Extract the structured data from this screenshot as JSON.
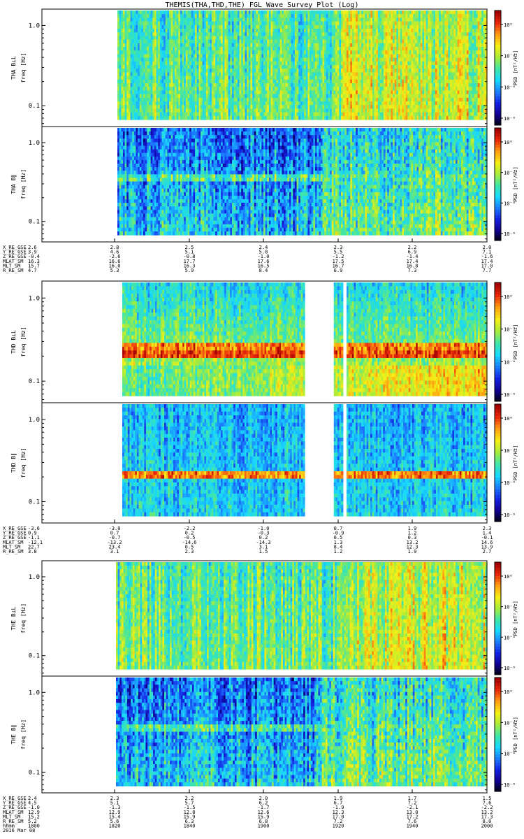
{
  "title": "THEMIS(THA,THD,THE) FGL Wave Survey Plot (Log)",
  "colors": {
    "colormap": [
      "#000000",
      "#10008c",
      "#1420e0",
      "#1c7cff",
      "#17d8ff",
      "#3fe6a8",
      "#a6ec3c",
      "#f4f016",
      "#ffa012",
      "#ea2a0c",
      "#a00000"
    ]
  },
  "chart_data": {
    "type": "heatmap",
    "yscale": "log",
    "ylim": [
      0.055,
      1.6
    ],
    "panels": [
      {
        "id": "tha-perp",
        "ylabel1": "THA B⊥L",
        "ylabel2": "freq [Hz]",
        "colorbar_label": "PSD [nT²/Hz]",
        "yticks": [
          "1.0",
          "0.1"
        ],
        "cb_ticks": [
          "10⁰",
          "10⁻²",
          "10⁻⁴",
          "10⁻⁶"
        ],
        "data_start_frac": 0.0,
        "gaps": []
      },
      {
        "id": "tha-par",
        "ylabel1": "THA B∥",
        "ylabel2": "freq [Hz]",
        "colorbar_label": "PSD [nT²/Hz]",
        "yticks": [
          "1.0",
          "0.1"
        ],
        "cb_ticks": [
          "10⁰",
          "10⁻²",
          "10⁻⁴",
          "10⁻⁶"
        ],
        "data_start_frac": 0.0,
        "gaps": []
      },
      {
        "id": "thd-perp",
        "ylabel1": "THD B⊥L",
        "ylabel2": "freq [Hz]",
        "colorbar_label": "PSD [nT²/Hz]",
        "yticks": [
          "1.0",
          "0.1"
        ],
        "cb_ticks": [
          "10⁰",
          "10⁻²",
          "10⁻⁴",
          "10⁻⁶"
        ],
        "data_start_frac": 0.02,
        "gaps": [
          [
            0.5,
            0.58
          ],
          [
            0.605,
            0.615
          ]
        ]
      },
      {
        "id": "thd-par",
        "ylabel1": "THD B∥",
        "ylabel2": "freq [Hz]",
        "colorbar_label": "PSD [nT²/Hz]",
        "yticks": [
          "1.0",
          "0.1"
        ],
        "cb_ticks": [
          "10⁰",
          "10⁻²",
          "10⁻⁴",
          "10⁻⁶"
        ],
        "data_start_frac": 0.02,
        "gaps": [
          [
            0.5,
            0.58
          ],
          [
            0.605,
            0.615
          ]
        ]
      },
      {
        "id": "the-perp",
        "ylabel1": "THE B⊥L",
        "ylabel2": "freq [Hz]",
        "colorbar_label": "PSD [nT²/Hz]",
        "yticks": [
          "1.0",
          "0.1"
        ],
        "cb_ticks": [
          "10⁰",
          "10⁻²",
          "10⁻⁴",
          "10⁻⁶"
        ],
        "data_start_frac": 0.0,
        "gaps": []
      },
      {
        "id": "the-par",
        "ylabel1": "THE B∥",
        "ylabel2": "freq [Hz]",
        "colorbar_label": "PSD [nT²/Hz]",
        "yticks": [
          "1.0",
          "0.1"
        ],
        "cb_ticks": [
          "10⁰",
          "10⁻²",
          "10⁻⁴",
          "10⁻⁶"
        ],
        "data_start_frac": 0.0,
        "gaps": []
      }
    ],
    "ephemeris": [
      {
        "labels": [
          "X_RE_GSE",
          "Y_RE_GSE",
          "Z_RE_GSE",
          "MLAT_SM",
          "MLT_SM",
          "R_RE_SM"
        ],
        "left": [
          "2.6",
          "3.9",
          "-0.4",
          "16.3",
          "15.7",
          "4.7"
        ],
        "cols": [
          [
            "2.8",
            "4.6",
            "-2.6",
            "16.6",
            "16.0",
            "5.3"
          ],
          [
            "2.5",
            "5.1",
            "-0.8",
            "17.7",
            "16.3",
            "5.9"
          ],
          [
            "2.4",
            "5.8",
            "-1.0",
            "17.6",
            "16.5",
            "8.4"
          ],
          [
            "2.3",
            "5.5",
            "-1.2",
            "17.5",
            "16.7",
            "6.9"
          ],
          [
            "2.2",
            "6.9",
            "-1.4",
            "17.4",
            "16.8",
            "7.3"
          ],
          [
            "2.0",
            "7.1",
            "-1.6",
            "17.4",
            "17.0",
            "7.7"
          ]
        ]
      },
      {
        "labels": [
          "X_RE_GSE",
          "Y_RE_GSE",
          "Z_RE_GSE",
          "MLAT_SM",
          "MLT_SM",
          "R_RE_SM"
        ],
        "left": [
          "-3.6",
          "0.9",
          "-1.1",
          "-12.1",
          "22.7",
          "3.8"
        ],
        "cols": [
          [
            "-3.0",
            "0.7",
            "-0.7",
            "-13.2",
            "23.4",
            "3.1"
          ],
          [
            "-2.2",
            "0.2",
            "-0.5",
            "-14.6",
            "0.5",
            "2.3"
          ],
          [
            "-1.0",
            "-0.3",
            "0.2",
            "-14.3",
            "3.1",
            "1.5"
          ],
          [
            "0.7",
            "-0.9",
            "0.5",
            "1.3",
            "8.4",
            "1.2"
          ],
          [
            "1.9",
            "1.2",
            "0.3",
            "13.2",
            "12.3",
            "1.9"
          ],
          [
            "2.3",
            "1.4",
            "-0.1",
            "14.6",
            "13.9",
            "2.7"
          ]
        ]
      },
      {
        "labels": [
          "X_RE_GSE",
          "Y_RE_GSE",
          "Z_RE_GSE",
          "MLAT_SM",
          "MLT_SM",
          "R_RE_SM",
          "hhmm",
          "2016 Mar 08"
        ],
        "left": [
          "2.4",
          "4.5",
          "-1.0",
          "12.9",
          "15.2",
          "5.2",
          "1800",
          ""
        ],
        "cols": [
          [
            "2.3",
            "5.1",
            "-1.3",
            "12.9",
            "15.4",
            "5.6",
            "1820"
          ],
          [
            "2.2",
            "5.7",
            "-1.5",
            "12.8",
            "15.9",
            "6.3",
            "1840"
          ],
          [
            "2.0",
            "6.2",
            "-1.7",
            "12.6",
            "15.9",
            "6.8",
            "1900"
          ],
          [
            "1.9",
            "6.7",
            "-1.9",
            "12.3",
            "17.0",
            "7.2",
            "1920"
          ],
          [
            "1.7",
            "7.2",
            "-2.1",
            "13.0",
            "17.2",
            "7.6",
            "1940"
          ],
          [
            "1.5",
            "7.6",
            "-2.2",
            "13.2",
            "17.3",
            "8.0",
            "2000"
          ]
        ]
      }
    ]
  }
}
